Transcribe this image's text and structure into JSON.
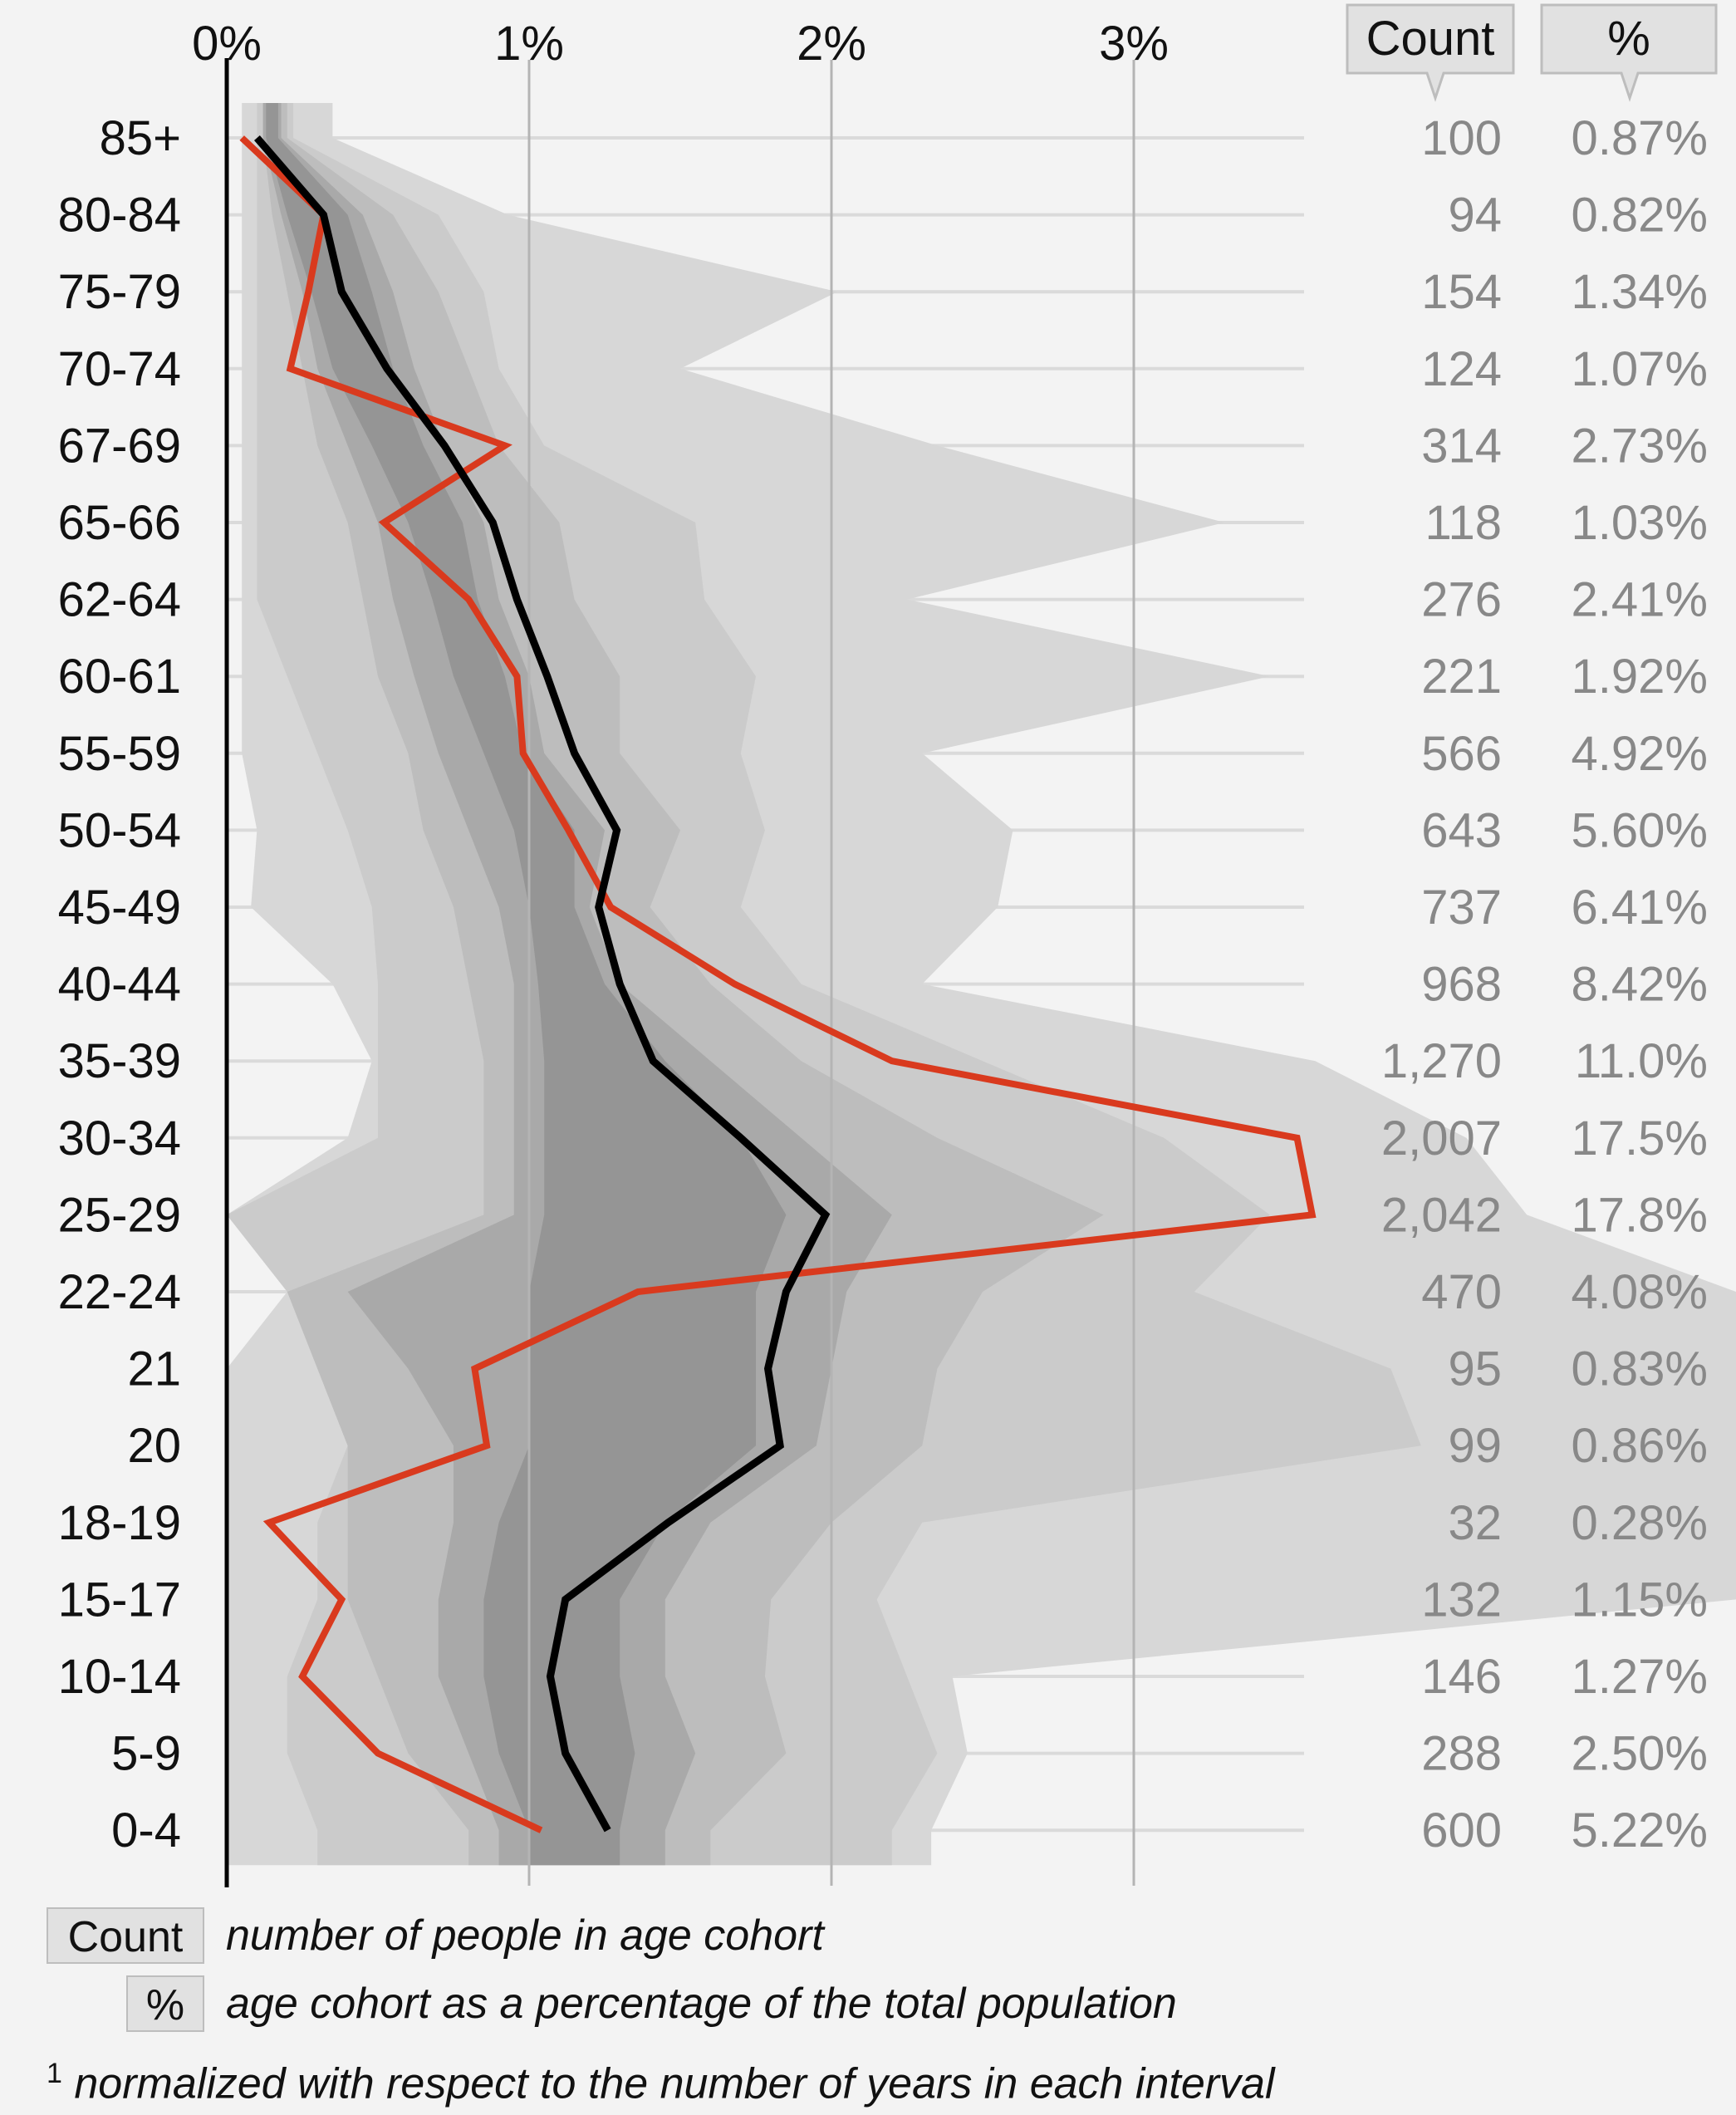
{
  "chart_data": {
    "type": "area",
    "title": "",
    "xlabel": "",
    "ylabel": "",
    "x_ticks": [
      "0%",
      "1%",
      "2%",
      "3%"
    ],
    "xlim": [
      0,
      3.6
    ],
    "categories": [
      "85+",
      "80-84",
      "75-79",
      "70-74",
      "67-69",
      "65-66",
      "62-64",
      "60-61",
      "55-59",
      "50-54",
      "45-49",
      "40-44",
      "35-39",
      "30-34",
      "25-29",
      "22-24",
      "21",
      "20",
      "18-19",
      "15-17",
      "10-14",
      "5-9",
      "0-4"
    ],
    "count": [
      "100",
      "94",
      "154",
      "124",
      "314",
      "118",
      "276",
      "221",
      "566",
      "643",
      "737",
      "968",
      "1,270",
      "2,007",
      "2,042",
      "470",
      "95",
      "99",
      "32",
      "132",
      "146",
      "288",
      "600"
    ],
    "percent": [
      "0.87%",
      "0.82%",
      "1.34%",
      "1.07%",
      "2.73%",
      "1.03%",
      "2.41%",
      "1.92%",
      "4.92%",
      "5.60%",
      "6.41%",
      "8.42%",
      "11.0%",
      "17.5%",
      "17.8%",
      "4.08%",
      "0.83%",
      "0.86%",
      "0.28%",
      "1.15%",
      "1.27%",
      "2.50%",
      "5.22%"
    ],
    "series": [
      {
        "name": "highlighted population",
        "color": "#d93a1e",
        "values": [
          0.05,
          0.32,
          0.27,
          0.21,
          0.92,
          0.52,
          0.8,
          0.96,
          0.98,
          1.13,
          1.27,
          1.68,
          2.2,
          3.54,
          3.59,
          1.36,
          0.82,
          0.86,
          0.14,
          0.38,
          0.25,
          0.5,
          1.04
        ]
      },
      {
        "name": "median",
        "color": "#000000",
        "values": [
          0.1,
          0.32,
          0.38,
          0.53,
          0.72,
          0.88,
          0.96,
          1.06,
          1.15,
          1.29,
          1.23,
          1.3,
          1.41,
          1.7,
          1.98,
          1.85,
          1.79,
          1.83,
          1.46,
          1.12,
          1.07,
          1.12,
          1.26
        ]
      }
    ],
    "bands": [
      {
        "name": "band-1",
        "color": "#d7d7d7",
        "low": [
          0.05,
          0.05,
          0.05,
          0.05,
          0.05,
          0.05,
          0.05,
          0.05,
          0.05,
          0.1,
          0.08,
          0.35,
          0.48,
          0.4,
          0.0,
          0.2,
          0.0,
          0.0,
          0.0,
          0.0,
          0.0,
          0.0,
          0.0
        ],
        "high": [
          0.35,
          0.93,
          2.02,
          1.5,
          2.35,
          3.3,
          2.25,
          3.45,
          2.3,
          2.6,
          2.55,
          2.3,
          3.6,
          4.1,
          4.3,
          5.0,
          5.0,
          5.0,
          5.0,
          5.0,
          2.4,
          2.45,
          2.33
        ]
      },
      {
        "name": "band-2",
        "color": "#cbcbcb",
        "low": [
          0.1,
          0.1,
          0.1,
          0.1,
          0.1,
          0.1,
          0.1,
          0.2,
          0.3,
          0.4,
          0.48,
          0.5,
          0.5,
          0.5,
          0.0,
          0.2,
          0.3,
          0.4,
          0.3,
          0.3,
          0.2,
          0.2,
          0.3
        ],
        "high": [
          0.22,
          0.7,
          0.85,
          0.9,
          1.05,
          1.55,
          1.58,
          1.75,
          1.7,
          1.78,
          1.7,
          1.9,
          2.5,
          3.1,
          3.45,
          3.2,
          3.85,
          3.95,
          2.3,
          2.15,
          2.25,
          2.35,
          2.2
        ]
      },
      {
        "name": "band-3",
        "color": "#bdbdbd",
        "low": [
          0.12,
          0.15,
          0.2,
          0.25,
          0.3,
          0.4,
          0.45,
          0.5,
          0.6,
          0.65,
          0.75,
          0.8,
          0.85,
          0.85,
          0.85,
          0.2,
          0.3,
          0.4,
          0.4,
          0.4,
          0.5,
          0.6,
          0.8
        ],
        "high": [
          0.2,
          0.55,
          0.7,
          0.8,
          0.9,
          1.1,
          1.15,
          1.3,
          1.3,
          1.5,
          1.4,
          1.6,
          1.9,
          2.35,
          2.9,
          2.5,
          2.35,
          2.3,
          2.0,
          1.8,
          1.78,
          1.85,
          1.6
        ]
      },
      {
        "name": "band-4",
        "color": "#a9a9a9",
        "low": [
          0.12,
          0.18,
          0.25,
          0.3,
          0.4,
          0.5,
          0.55,
          0.62,
          0.7,
          0.8,
          0.9,
          0.95,
          0.95,
          0.95,
          0.95,
          0.4,
          0.6,
          0.75,
          0.75,
          0.7,
          0.7,
          0.8,
          0.9
        ],
        "high": [
          0.18,
          0.45,
          0.55,
          0.62,
          0.72,
          0.85,
          0.9,
          1.0,
          1.05,
          1.25,
          1.2,
          1.3,
          1.6,
          1.9,
          2.2,
          2.05,
          2.0,
          1.95,
          1.6,
          1.45,
          1.45,
          1.55,
          1.45
        ]
      },
      {
        "name": "band-5",
        "color": "#959595",
        "low": [
          0.13,
          0.2,
          0.28,
          0.35,
          0.48,
          0.6,
          0.68,
          0.75,
          0.85,
          0.95,
          1.0,
          1.03,
          1.05,
          1.05,
          1.05,
          1.0,
          1.0,
          1.0,
          0.9,
          0.85,
          0.85,
          0.9,
          1.0
        ],
        "high": [
          0.17,
          0.4,
          0.48,
          0.55,
          0.65,
          0.78,
          0.83,
          0.92,
          0.98,
          1.15,
          1.15,
          1.25,
          1.45,
          1.7,
          1.85,
          1.75,
          1.75,
          1.75,
          1.45,
          1.3,
          1.3,
          1.35,
          1.3
        ]
      }
    ]
  },
  "header": {
    "count_label": "Count",
    "pct_label": "%"
  },
  "legend": {
    "count_label": "Count",
    "count_desc": "number of people in age cohort",
    "pct_label": "%",
    "pct_desc": "age cohort as a percentage of the total population",
    "footnote_mark": "1",
    "footnote_text": "normalized with respect to the number of years in each interval"
  },
  "colors": {
    "background": "#f3f3f3",
    "highlight": "#d93a1e",
    "median": "#000000",
    "grid": "#c8c8c8"
  }
}
